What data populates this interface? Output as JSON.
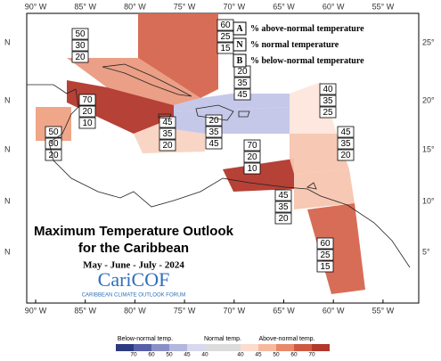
{
  "title": {
    "line1": "Maximum Temperature Outlook",
    "line2": "for the Caribbean",
    "period": "May - June - July - 2024"
  },
  "logo": {
    "name": "CariCOF",
    "subtitle": "CARIBBEAN CLIMATE OUTLOOK FORUM"
  },
  "key": [
    {
      "letter": "A",
      "text": "% above-normal temperature"
    },
    {
      "letter": "N",
      "text": "% normal temperature"
    },
    {
      "letter": "B",
      "text": "% below-normal temperature"
    }
  ],
  "lon_labels": [
    "90° W",
    "85° W",
    "80° W",
    "75° W",
    "70° W",
    "65° W",
    "60° W",
    "55° W"
  ],
  "lat_labels_right": [
    "25°",
    "20°",
    "15°",
    "10°",
    "5°"
  ],
  "lat_labels_left": [
    "N",
    "N",
    "N",
    "N",
    "N"
  ],
  "regions": [
    {
      "above": 60,
      "normal": 25,
      "below": 15,
      "color": "#d6654e"
    },
    {
      "above": 50,
      "normal": 30,
      "below": 20,
      "color": "#e99a7f"
    },
    {
      "above": 70,
      "normal": 20,
      "below": 10,
      "color": "#b2372c"
    },
    {
      "above": 50,
      "normal": 30,
      "below": 20,
      "color": "#eea183"
    },
    {
      "above": 20,
      "normal": 35,
      "below": 45,
      "color": "#c3c5e8"
    },
    {
      "above": 45,
      "normal": 35,
      "below": 20,
      "color": "#f8d3c1"
    },
    {
      "above": 20,
      "normal": 35,
      "below": 45,
      "color": "#c3c5e8"
    },
    {
      "above": 70,
      "normal": 20,
      "below": 10,
      "color": "#b2372c"
    },
    {
      "above": 40,
      "normal": 35,
      "below": 25,
      "color": "#fde6dc"
    },
    {
      "above": 45,
      "normal": 35,
      "below": 20,
      "color": "#f7c5af"
    },
    {
      "above": 45,
      "normal": 35,
      "below": 20,
      "color": "#f7c5af"
    },
    {
      "above": 60,
      "normal": 25,
      "below": 15,
      "color": "#d6654e"
    }
  ],
  "colorbar": {
    "below_label": "Below-normal temp.",
    "normal_label": "Normal temp.",
    "above_label": "Above-normal temp.",
    "below_ticks": [
      70,
      60,
      50,
      45,
      40
    ],
    "above_ticks": [
      40,
      45,
      50,
      60,
      70
    ],
    "colors": [
      "#2c3a7e",
      "#5860a8",
      "#8a8fc8",
      "#b3b6de",
      "#d8d9ee",
      "#dcdcdc",
      "#dcdcdc",
      "#fbdccf",
      "#f6b9a0",
      "#e9896b",
      "#cf5840",
      "#b2372c"
    ]
  }
}
